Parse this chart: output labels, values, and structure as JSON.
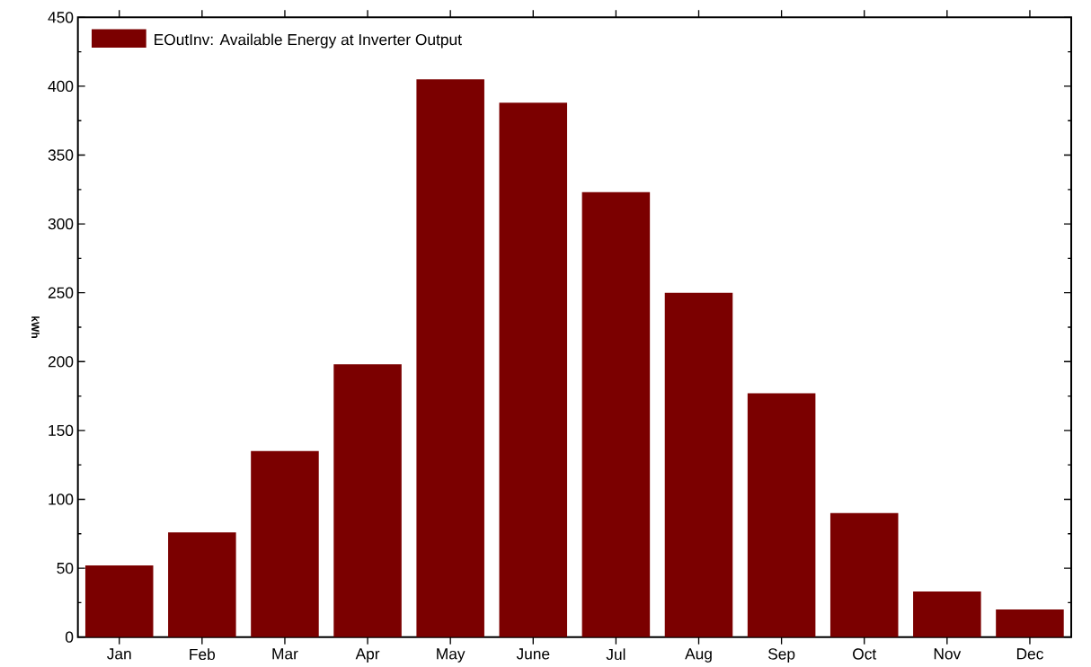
{
  "chart_data": {
    "type": "bar",
    "ylabel": "kWh",
    "categories": [
      "Jan",
      "Feb",
      "Mar",
      "Apr",
      "May",
      "June",
      "Jul",
      "Aug",
      "Sep",
      "Oct",
      "Nov",
      "Dec"
    ],
    "series": [
      {
        "name": "EOutInv:  Available Energy at Inverter Output",
        "color": "#7b0000",
        "values": [
          52,
          76,
          135,
          198,
          405,
          388,
          323,
          250,
          177,
          90,
          33,
          20
        ]
      }
    ],
    "ylim": [
      0,
      450
    ],
    "yticks": [
      0,
      50,
      100,
      150,
      200,
      250,
      300,
      350,
      400,
      450
    ],
    "grid": false,
    "legend": "top left"
  }
}
